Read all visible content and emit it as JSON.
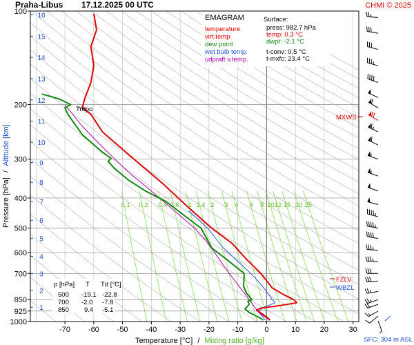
{
  "header": {
    "station": "Praha-Libus",
    "datetime": "17.12.2025 00 UTC",
    "source": "CHMI © 2025"
  },
  "legend": {
    "title": "EMAGRAM",
    "items": [
      {
        "label": "temperature",
        "color": "#e00000"
      },
      {
        "label": "virt.temp.",
        "color": "#e00000"
      },
      {
        "label": "dew point",
        "color": "#118811"
      },
      {
        "label": "wet bulb temp.",
        "color": "#2255dd"
      },
      {
        "label": "udpraft v.temp.",
        "color": "#aa00aa"
      }
    ]
  },
  "surface": {
    "title": "Surface:",
    "press": "press: 982.7 hPa",
    "temp": "temp: 0.3 °C",
    "dwpt": "dwpt: -2.1 °C",
    "tconv": "t-conv: 0.5 °C",
    "tmxfc": "t-mxfc: 23.4 °C"
  },
  "table": {
    "headers": [
      "p [hPa]",
      "T",
      "Td [°C]"
    ],
    "rows": [
      [
        "500",
        "-19.1",
        "-22.8"
      ],
      [
        "700",
        "-2.0",
        "-7.8"
      ],
      [
        "850",
        "9.4",
        "-5.1"
      ]
    ]
  },
  "axes": {
    "ylabel_pressure": "Pressure [hPa]",
    "ylabel_sep": "/",
    "ylabel_altitude": "Altitude [km]",
    "xlabel_temp": "Temperature [°C]",
    "xlabel_sep": "/",
    "xlabel_mix": "Mixing ratio [g/kg]",
    "sfc": "SFC: 304 m ASL"
  },
  "annotations": {
    "tropo": "Tropo",
    "mxws": "MXWS",
    "fzlv": "FZLV",
    "wbzl": "WBZL"
  },
  "colors": {
    "temperature": "#e00000",
    "dewpoint": "#118811",
    "wetbulb": "#2255dd",
    "parcel": "#aa00aa",
    "mixing": "#88dd55",
    "dry_adiabat": "#bbbbbb",
    "altitude_label": "#1e50c8"
  },
  "chart_data": {
    "type": "line",
    "x_axis": {
      "label": "Temperature [°C]",
      "range": [
        -82,
        32
      ],
      "ticks": [
        -70,
        -60,
        -50,
        -40,
        -30,
        -20,
        -10,
        0,
        10,
        20,
        30
      ]
    },
    "y_axis": {
      "label": "Pressure [hPa]",
      "scale": "log",
      "range": [
        1000,
        100
      ],
      "ticks": [
        100,
        200,
        300,
        400,
        500,
        600,
        700,
        850,
        925,
        1000
      ]
    },
    "altitude_ticks_km": [
      1,
      2,
      3,
      4,
      5,
      6,
      7,
      8,
      9,
      10,
      11,
      12,
      13,
      14,
      15,
      16
    ],
    "mixing_ratio_labels": [
      "0.1",
      "0.2",
      "0.4",
      "0.6",
      "1",
      "1.4",
      "2",
      "3",
      "4",
      "6",
      "8",
      "10",
      "12",
      "15",
      "20",
      "25"
    ],
    "mixing_ratio_values": [
      0.1,
      0.2,
      0.4,
      0.6,
      1,
      1.4,
      2,
      3,
      4,
      6,
      8,
      10,
      12,
      15,
      20,
      25
    ],
    "series": [
      {
        "name": "temperature",
        "points": [
          [
            1.2,
            990
          ],
          [
            0.5,
            975
          ],
          [
            -1.5,
            945
          ],
          [
            -3.5,
            920
          ],
          [
            -2,
            905
          ],
          [
            4,
            890
          ],
          [
            10.5,
            870
          ],
          [
            9.4,
            850
          ],
          [
            6,
            820
          ],
          [
            2,
            780
          ],
          [
            -2,
            700
          ],
          [
            -7,
            630
          ],
          [
            -12,
            560
          ],
          [
            -19.1,
            500
          ],
          [
            -27,
            430
          ],
          [
            -36,
            360
          ],
          [
            -46,
            300
          ],
          [
            -57,
            245
          ],
          [
            -61,
            215
          ],
          [
            -64,
            205
          ],
          [
            -63,
            190
          ],
          [
            -61,
            170
          ],
          [
            -60,
            150
          ],
          [
            -61,
            130
          ],
          [
            -59,
            115
          ],
          [
            -60,
            102
          ]
        ]
      },
      {
        "name": "dew point",
        "points": [
          [
            -1.2,
            990
          ],
          [
            -2.1,
            975
          ],
          [
            -6,
            935
          ],
          [
            -7.5,
            910
          ],
          [
            -6,
            880
          ],
          [
            -6.5,
            860
          ],
          [
            -5.1,
            850
          ],
          [
            -7,
            810
          ],
          [
            -8,
            770
          ],
          [
            -7.8,
            700
          ],
          [
            -13,
            640
          ],
          [
            -19,
            580
          ],
          [
            -22.8,
            500
          ],
          [
            -28,
            460
          ],
          [
            -35,
            410
          ],
          [
            -42,
            380
          ],
          [
            -48,
            350
          ],
          [
            -53,
            320
          ],
          [
            -55,
            305
          ],
          [
            -54,
            298
          ],
          [
            -57,
            285
          ],
          [
            -64,
            250
          ],
          [
            -69,
            215
          ],
          [
            -70,
            205
          ],
          [
            -68,
            200
          ],
          [
            -72,
            192
          ],
          [
            -78,
            185
          ]
        ]
      },
      {
        "name": "wet bulb temp.",
        "points": [
          [
            -0.5,
            990
          ],
          [
            -1.5,
            960
          ],
          [
            -3,
            930
          ],
          [
            -1,
            900
          ],
          [
            3,
            870
          ],
          [
            2,
            850
          ],
          [
            0,
            800
          ],
          [
            -3,
            740
          ],
          [
            -5.5,
            700
          ],
          [
            -10,
            640
          ],
          [
            -15,
            580
          ],
          [
            -20.5,
            500
          ],
          [
            -27,
            440
          ]
        ]
      },
      {
        "name": "udpraft v.temp.",
        "points": [
          [
            0.3,
            980
          ],
          [
            -3,
            930
          ],
          [
            -6,
            850
          ],
          [
            -10,
            760
          ],
          [
            -14,
            680
          ],
          [
            -18,
            600
          ],
          [
            -21,
            550
          ],
          [
            -25,
            500
          ],
          [
            -32,
            440
          ],
          [
            -40,
            380
          ],
          [
            -48,
            330
          ],
          [
            -56,
            280
          ],
          [
            -64,
            235
          ],
          [
            -70,
            200
          ]
        ]
      }
    ],
    "wind_barbs": [
      {
        "p": 995,
        "dir": 160,
        "kt": 5
      },
      {
        "p": 960,
        "dir": 230,
        "kt": 10
      },
      {
        "p": 925,
        "dir": 240,
        "kt": 15
      },
      {
        "p": 880,
        "dir": 250,
        "kt": 20
      },
      {
        "p": 850,
        "dir": 250,
        "kt": 25
      },
      {
        "p": 800,
        "dir": 260,
        "kt": 25
      },
      {
        "p": 740,
        "dir": 265,
        "kt": 30
      },
      {
        "p": 700,
        "dir": 270,
        "kt": 30
      },
      {
        "p": 640,
        "dir": 270,
        "kt": 35
      },
      {
        "p": 590,
        "dir": 275,
        "kt": 35
      },
      {
        "p": 540,
        "dir": 280,
        "kt": 40
      },
      {
        "p": 500,
        "dir": 280,
        "kt": 45
      },
      {
        "p": 460,
        "dir": 285,
        "kt": 45
      },
      {
        "p": 420,
        "dir": 285,
        "kt": 50
      },
      {
        "p": 380,
        "dir": 290,
        "kt": 50
      },
      {
        "p": 340,
        "dir": 290,
        "kt": 55
      },
      {
        "p": 300,
        "dir": 290,
        "kt": 55
      },
      {
        "p": 270,
        "dir": 295,
        "kt": 60
      },
      {
        "p": 245,
        "dir": 295,
        "kt": 65
      },
      {
        "p": 225,
        "dir": 300,
        "kt": 70
      },
      {
        "p": 205,
        "dir": 300,
        "kt": 60
      },
      {
        "p": 190,
        "dir": 295,
        "kt": 50
      },
      {
        "p": 170,
        "dir": 290,
        "kt": 40
      },
      {
        "p": 150,
        "dir": 285,
        "kt": 35
      },
      {
        "p": 133,
        "dir": 285,
        "kt": 30
      },
      {
        "p": 118,
        "dir": 280,
        "kt": 30
      },
      {
        "p": 105,
        "dir": 275,
        "kt": 25
      }
    ],
    "levels": {
      "tropopause_hpa": 205,
      "mxws_hpa": 220,
      "fzlv_hpa": 727,
      "wbzl_hpa": 745
    }
  }
}
